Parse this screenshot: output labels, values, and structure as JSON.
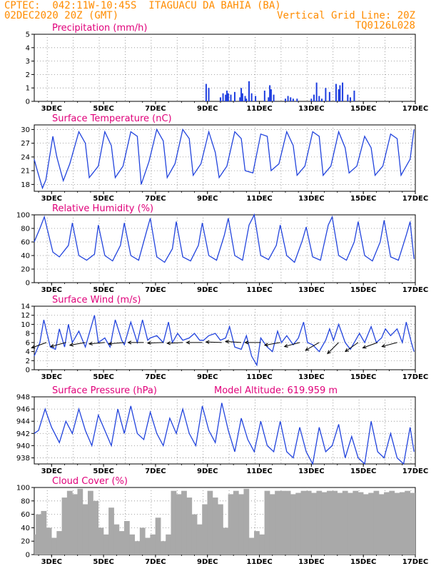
{
  "header": {
    "line1": "CPTEC:  042:11W-10:45S  ITAGUACU DA BAHIA (BA)",
    "line2_left": "02DEC2020 20Z (GMT)",
    "line2_right": "Vertical Grid Line: 20Z",
    "line3_right": "TQ0126L028"
  },
  "colors": {
    "header": "#ff8c00",
    "title": "#e0007a",
    "line": "#2244dd",
    "bar": "#1f3fe0",
    "cloud": "#a9a9a9"
  },
  "chart_data": [
    {
      "type": "bar",
      "title": "Precipitation (mm/h)",
      "x_labels": [
        "3DEC",
        "5DEC",
        "7DEC",
        "9DEC",
        "11DEC",
        "13DEC",
        "15DEC",
        "17DEC"
      ],
      "ylim": [
        0,
        5
      ],
      "yticks": [
        0,
        1,
        2,
        3,
        4,
        5
      ],
      "grid": true,
      "x": [
        8.95,
        9.05,
        9.5,
        9.6,
        9.7,
        9.75,
        9.8,
        9.9,
        10.05,
        10.25,
        10.3,
        10.35,
        10.45,
        10.5,
        10.6,
        10.7,
        10.85,
        11.2,
        11.35,
        11.4,
        11.45,
        11.55,
        12.0,
        12.1,
        12.2,
        12.3,
        12.45,
        13.0,
        13.1,
        13.2,
        13.3,
        13.4,
        13.55,
        13.7,
        13.95,
        14.05,
        14.1,
        14.2,
        14.4,
        14.5,
        14.65
      ],
      "values": [
        1.3,
        1.0,
        0.3,
        0.6,
        0.5,
        0.8,
        0.6,
        0.5,
        0.7,
        0.3,
        1.0,
        0.6,
        0.4,
        0.2,
        1.5,
        0.6,
        0.4,
        0.8,
        0.3,
        1.2,
        0.9,
        0.5,
        0.2,
        0.4,
        0.3,
        0.2,
        0.2,
        0.2,
        0.5,
        1.4,
        0.4,
        0.2,
        1.0,
        0.7,
        1.3,
        0.9,
        1.2,
        1.4,
        0.5,
        0.3,
        0.8
      ]
    },
    {
      "type": "line",
      "title": "Surface Temperature (nC)",
      "x_labels": [
        "3DEC",
        "5DEC",
        "7DEC",
        "9DEC",
        "11DEC",
        "13DEC",
        "15DEC",
        "17DEC"
      ],
      "ylim": [
        16.5,
        31
      ],
      "yticks": [
        18,
        21,
        24,
        27,
        30
      ],
      "grid": true,
      "series": [
        {
          "x": [
            2.33,
            2.45,
            2.65,
            2.78,
            3.05,
            3.2,
            3.45,
            3.7,
            4.05,
            4.3,
            4.45,
            4.8,
            5.05,
            5.3,
            5.45,
            5.75,
            6.05,
            6.3,
            6.45,
            6.75,
            7.05,
            7.3,
            7.45,
            7.75,
            8.05,
            8.3,
            8.45,
            8.75,
            9.05,
            9.3,
            9.45,
            9.75,
            10.05,
            10.3,
            10.45,
            10.75,
            11.05,
            11.3,
            11.45,
            11.75,
            12.05,
            12.3,
            12.45,
            12.75,
            13.05,
            13.3,
            13.45,
            13.75,
            14.05,
            14.3,
            14.45,
            14.75,
            15.05,
            15.3,
            15.45,
            15.75,
            16.05,
            16.3,
            16.45,
            16.8,
            16.95
          ],
          "y": [
            23.5,
            21,
            17.2,
            19,
            28.5,
            24,
            18.8,
            22.5,
            29.5,
            27,
            19.5,
            22,
            29.5,
            26.5,
            19.5,
            22,
            29.5,
            28.5,
            18,
            23,
            30,
            27.5,
            19.5,
            22.5,
            30,
            28,
            20,
            22.5,
            29.5,
            25,
            19.5,
            22,
            29.5,
            28,
            21,
            20.5,
            29,
            28.5,
            21,
            22.5,
            29.5,
            26.5,
            20,
            22,
            29.5,
            28.5,
            20,
            22,
            29.5,
            26,
            20.5,
            22,
            28.5,
            26,
            20,
            22,
            29,
            28,
            20,
            23.5,
            30
          ]
        }
      ]
    },
    {
      "type": "line",
      "title": "Relative Humidity (%)",
      "x_labels": [
        "3DEC",
        "5DEC",
        "7DEC",
        "9DEC",
        "11DEC",
        "13DEC",
        "15DEC",
        "17DEC"
      ],
      "ylim": [
        0,
        100
      ],
      "yticks": [
        0,
        20,
        40,
        60,
        80,
        100
      ],
      "grid": true,
      "series": [
        {
          "x": [
            2.33,
            2.55,
            2.72,
            3.05,
            3.3,
            3.65,
            3.8,
            4.05,
            4.35,
            4.65,
            4.8,
            5.05,
            5.35,
            5.65,
            5.8,
            6.05,
            6.35,
            6.65,
            6.8,
            7.05,
            7.35,
            7.65,
            7.8,
            8.05,
            8.35,
            8.65,
            8.8,
            9.05,
            9.35,
            9.65,
            9.8,
            10.05,
            10.35,
            10.6,
            10.8,
            11.05,
            11.35,
            11.65,
            11.8,
            12.05,
            12.35,
            12.65,
            12.8,
            13.05,
            13.35,
            13.65,
            13.8,
            14.05,
            14.35,
            14.65,
            14.8,
            15.05,
            15.35,
            15.65,
            15.8,
            16.05,
            16.35,
            16.65,
            16.8,
            16.95
          ],
          "y": [
            60,
            80,
            97,
            45,
            38,
            55,
            88,
            40,
            33,
            42,
            85,
            40,
            32,
            55,
            88,
            40,
            33,
            75,
            95,
            38,
            30,
            50,
            90,
            38,
            32,
            55,
            88,
            40,
            33,
            70,
            95,
            40,
            33,
            85,
            100,
            40,
            34,
            55,
            85,
            40,
            30,
            62,
            82,
            38,
            33,
            85,
            97,
            40,
            33,
            60,
            90,
            40,
            32,
            60,
            92,
            38,
            33,
            70,
            90,
            35
          ]
        }
      ]
    },
    {
      "type": "line",
      "title": "Surface Wind (m/s)",
      "x_labels": [
        "3DEC",
        "5DEC",
        "7DEC",
        "9DEC",
        "11DEC",
        "13DEC",
        "15DEC",
        "17DEC"
      ],
      "ylim": [
        0,
        14
      ],
      "yticks": [
        0,
        2,
        4,
        6,
        8,
        10,
        12,
        14
      ],
      "grid": true,
      "arrows_at": [
        2.8,
        3.55,
        4.3,
        5.05,
        5.8,
        6.55,
        7.3,
        8.05,
        8.8,
        9.55,
        10.3,
        11.05,
        11.8,
        12.55,
        13.3,
        14.05,
        14.8,
        15.55,
        16.3
      ],
      "series": [
        {
          "x": [
            2.33,
            2.55,
            2.7,
            2.95,
            3.15,
            3.3,
            3.5,
            3.65,
            3.8,
            4.05,
            4.3,
            4.45,
            4.65,
            4.8,
            5.05,
            5.25,
            5.45,
            5.7,
            5.8,
            6.05,
            6.3,
            6.5,
            6.7,
            6.8,
            7.05,
            7.3,
            7.5,
            7.65,
            7.85,
            8.05,
            8.3,
            8.5,
            8.7,
            8.85,
            9.05,
            9.3,
            9.5,
            9.7,
            9.85,
            10.05,
            10.3,
            10.5,
            10.7,
            10.9,
            11.05,
            11.3,
            11.5,
            11.7,
            11.85,
            12.05,
            12.3,
            12.5,
            12.7,
            12.85,
            13.05,
            13.3,
            13.55,
            13.7,
            13.85,
            14.05,
            14.3,
            14.5,
            14.7,
            14.85,
            15.05,
            15.3,
            15.5,
            15.7,
            15.85,
            16.05,
            16.3,
            16.5,
            16.65,
            16.85,
            16.95
          ],
          "y": [
            3,
            6,
            11,
            5,
            4.5,
            9,
            5,
            10,
            6,
            8.5,
            5,
            8,
            12,
            6,
            7,
            5,
            11,
            6.5,
            5.5,
            10.5,
            6,
            11,
            6.5,
            7,
            7.5,
            6,
            10.5,
            6,
            8,
            6.5,
            7,
            8,
            6.5,
            6.5,
            7.5,
            8,
            6.5,
            7,
            9.5,
            5,
            4.5,
            7.5,
            3,
            1,
            7,
            5,
            4,
            8.5,
            6,
            7.5,
            5.5,
            7,
            10.5,
            6,
            5.5,
            4,
            6.5,
            9,
            6.5,
            10,
            6,
            4.5,
            6.5,
            8,
            6,
            9.5,
            6,
            7,
            9,
            7.5,
            9,
            6,
            10.5,
            6,
            4
          ]
        }
      ]
    },
    {
      "type": "line",
      "title": "Surface Pressure (hPa)",
      "annotation": "Model Altitude: 619.959 m",
      "x_labels": [
        "3DEC",
        "5DEC",
        "7DEC",
        "9DEC",
        "11DEC",
        "13DEC",
        "15DEC",
        "17DEC"
      ],
      "ylim": [
        937,
        948
      ],
      "yticks": [
        938,
        940,
        942,
        944,
        946,
        948
      ],
      "grid": true,
      "series": [
        {
          "x": [
            2.33,
            2.5,
            2.75,
            3.0,
            3.3,
            3.55,
            3.8,
            4.05,
            4.3,
            4.55,
            4.8,
            5.05,
            5.3,
            5.55,
            5.8,
            6.05,
            6.3,
            6.55,
            6.8,
            7.05,
            7.3,
            7.55,
            7.8,
            8.05,
            8.3,
            8.55,
            8.8,
            9.05,
            9.3,
            9.55,
            9.8,
            10.05,
            10.3,
            10.55,
            10.8,
            11.05,
            11.3,
            11.55,
            11.8,
            12.05,
            12.3,
            12.55,
            12.8,
            13.05,
            13.3,
            13.55,
            13.8,
            14.05,
            14.3,
            14.55,
            14.8,
            15.05,
            15.3,
            15.55,
            15.8,
            16.05,
            16.3,
            16.55,
            16.8,
            16.95
          ],
          "y": [
            942,
            942.5,
            946,
            943,
            940.5,
            944,
            942,
            946,
            942.5,
            940,
            945,
            942.5,
            940,
            946,
            942,
            946.5,
            942,
            941,
            945.5,
            942,
            940,
            944.5,
            942,
            946,
            942,
            940,
            946.5,
            942.5,
            940.5,
            947,
            942.5,
            939,
            944.5,
            941,
            939,
            944,
            940,
            939,
            944,
            939,
            938,
            943,
            939,
            937,
            943,
            939,
            940,
            943.5,
            938,
            941.5,
            938,
            937,
            944,
            939,
            938,
            942,
            938,
            937,
            943,
            939
          ]
        }
      ]
    },
    {
      "type": "bar",
      "title": "Cloud Cover (%)",
      "x_labels": [
        "3DEC",
        "5DEC",
        "7DEC",
        "9DEC",
        "11DEC",
        "13DEC",
        "15DEC",
        "17DEC"
      ],
      "ylim": [
        0,
        100
      ],
      "yticks": [
        0,
        20,
        40,
        60,
        80,
        100
      ],
      "grid": true,
      "x": [
        2.3,
        2.5,
        2.7,
        2.9,
        3.1,
        3.3,
        3.5,
        3.7,
        3.9,
        4.1,
        4.3,
        4.5,
        4.7,
        4.9,
        5.1,
        5.3,
        5.5,
        5.7,
        5.9,
        6.1,
        6.3,
        6.5,
        6.7,
        6.9,
        7.1,
        7.3,
        7.5,
        7.7,
        7.9,
        8.1,
        8.3,
        8.5,
        8.7,
        8.9,
        9.1,
        9.3,
        9.5,
        9.7,
        9.9,
        10.1,
        10.3,
        10.5,
        10.7,
        10.9,
        11.1,
        11.3,
        11.5,
        11.7,
        11.9,
        12.1,
        12.3,
        12.5,
        12.7,
        12.9,
        13.1,
        13.3,
        13.5,
        13.7,
        13.9,
        14.1,
        14.3,
        14.5,
        14.7,
        14.9,
        15.1,
        15.3,
        15.5,
        15.7,
        15.9,
        16.1,
        16.3,
        16.5,
        16.7,
        16.9
      ],
      "values": [
        30,
        60,
        65,
        40,
        25,
        35,
        85,
        95,
        90,
        98,
        75,
        95,
        80,
        40,
        30,
        70,
        45,
        35,
        50,
        30,
        20,
        40,
        25,
        30,
        55,
        20,
        30,
        95,
        90,
        95,
        85,
        60,
        45,
        75,
        95,
        85,
        75,
        40,
        90,
        95,
        90,
        98,
        25,
        35,
        30,
        95,
        90,
        95,
        95,
        95,
        90,
        92,
        95,
        95,
        92,
        95,
        93,
        95,
        95,
        92,
        95,
        92,
        95,
        93,
        90,
        92,
        95,
        90,
        93,
        95,
        92,
        93,
        95,
        92
      ]
    }
  ]
}
